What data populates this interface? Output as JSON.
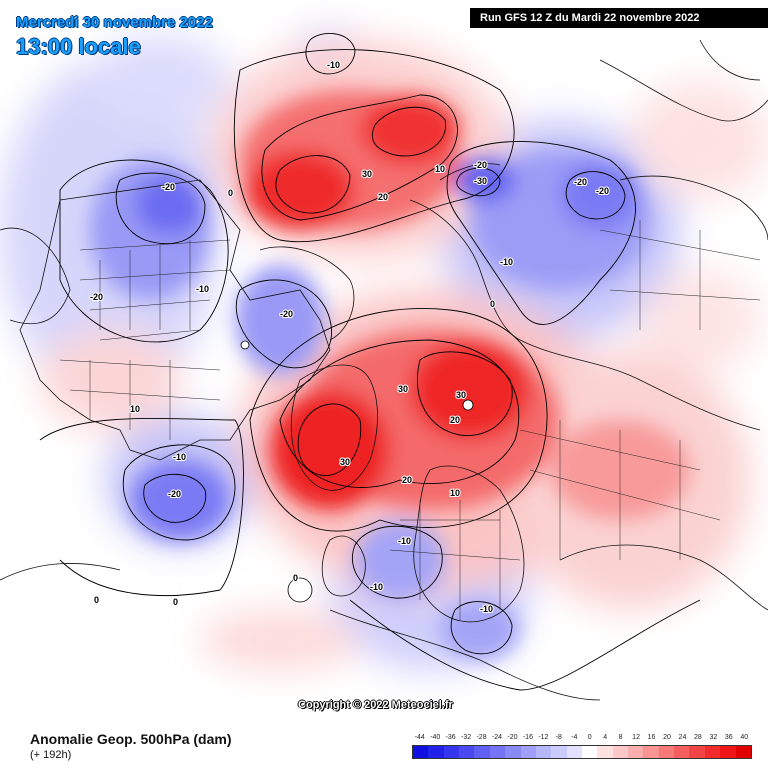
{
  "header": {
    "date_line": "Mercredi 30 novembre 2022",
    "time_line": "13:00 locale",
    "run_info": "Run GFS 12 Z du Mardi 22 novembre 2022"
  },
  "footer": {
    "product": "Anomalie Geop. 500hPa (dam)",
    "lead_time": "(+ 192h)",
    "copyright": "Copyright © 2022 Meteociel.fr"
  },
  "legend": {
    "values": [
      "-44",
      "-40",
      "-36",
      "-32",
      "-28",
      "-24",
      "-20",
      "-16",
      "-12",
      "-8",
      "-4",
      "0",
      "4",
      "8",
      "12",
      "16",
      "20",
      "24",
      "28",
      "32",
      "36",
      "40"
    ],
    "colors": [
      "#1010e0",
      "#2222e8",
      "#3636ee",
      "#4a4af0",
      "#5f5ff2",
      "#7474f4",
      "#8a8af6",
      "#a0a0f8",
      "#b6b6fa",
      "#cbcbfc",
      "#e2e2fe",
      "#ffffff",
      "#fee2e2",
      "#fcc8c8",
      "#faaeae",
      "#f89494",
      "#f67a7a",
      "#f46060",
      "#f24646",
      "#f02c2c",
      "#ee1616",
      "#e00000"
    ]
  },
  "contour_labels": [
    "-10",
    "-20",
    "-20",
    "-10",
    "-20",
    "-10",
    "-20",
    "-10",
    "-20",
    "10",
    "0",
    "30",
    "20",
    "10",
    "-20",
    "-30",
    "-20",
    "-10",
    "0",
    "30",
    "30",
    "20",
    "30",
    "20",
    "10",
    "-10",
    "-10",
    "0",
    "0",
    "0"
  ]
}
